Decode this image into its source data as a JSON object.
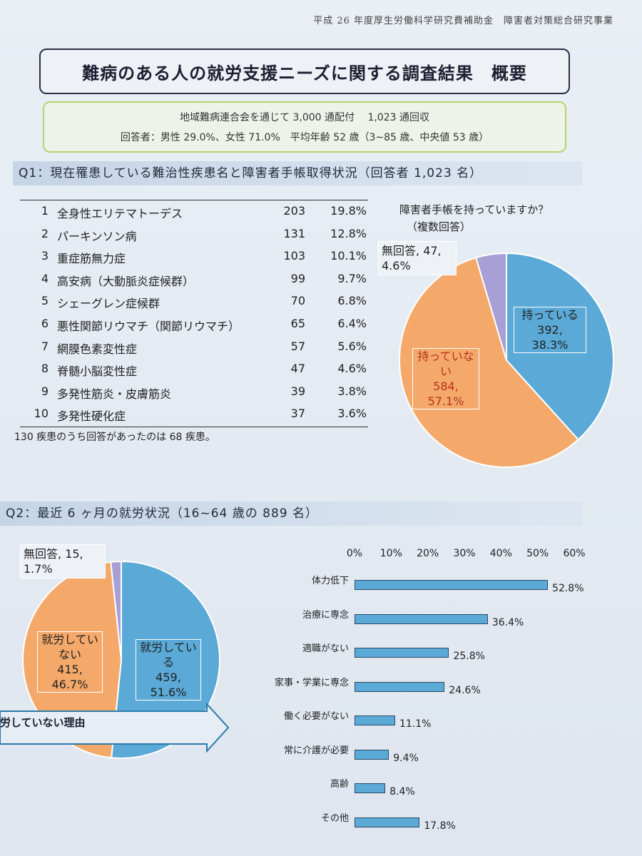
{
  "header": "平成 26 年度厚生労働科学研究費補助金　障害者対策総合研究事業",
  "title": "難病のある人の就労支援ニーズに関する調査結果　概要",
  "summary": {
    "line1": "地域難病連合会を通じて 3,000 通配付　 1,023 通回収",
    "line2": "回答者：男性 29.0%、女性 71.0%　平均年齢 52 歳（3~85 歳、中央値 53 歳）"
  },
  "q1": {
    "heading": "Q1：現在罹患している難治性疾患名と障害者手帳取得状況（回答者 1,023 名）",
    "rows": [
      {
        "rank": "1",
        "name": "全身性エリテマトーデス",
        "count": "203",
        "pct": "19.8%"
      },
      {
        "rank": "2",
        "name": "パーキンソン病",
        "count": "131",
        "pct": "12.8%"
      },
      {
        "rank": "3",
        "name": "重症筋無力症",
        "count": "103",
        "pct": "10.1%"
      },
      {
        "rank": "4",
        "name": "高安病（大動脈炎症候群）",
        "count": "99",
        "pct": "9.7%"
      },
      {
        "rank": "5",
        "name": "シェーグレン症候群",
        "count": "70",
        "pct": "6.8%"
      },
      {
        "rank": "6",
        "name": "悪性関節リウマチ（関節リウマチ）",
        "count": "65",
        "pct": "6.4%"
      },
      {
        "rank": "7",
        "name": "網膜色素変性症",
        "count": "57",
        "pct": "5.6%"
      },
      {
        "rank": "8",
        "name": "脊髄小脳変性症",
        "count": "47",
        "pct": "4.6%"
      },
      {
        "rank": "9",
        "name": "多発性筋炎・皮膚筋炎",
        "count": "39",
        "pct": "3.8%"
      },
      {
        "rank": "10",
        "name": "多発性硬化症",
        "count": "37",
        "pct": "3.6%"
      }
    ],
    "note": "130 疾患のうち回答があったのは 68 疾患。",
    "pie_title": "障害者手帳を持っていますか？",
    "pie_subtitle": "（複数回答）"
  },
  "q2": {
    "heading": "Q2：最近 6 ヶ月の就労状況（16~64 歳の 889 名）",
    "reason_label": "労していない理由"
  },
  "chart_data": [
    {
      "type": "pie",
      "title": "障害者手帳を持っていますか？",
      "slices": [
        {
          "label": "持っている",
          "count": "392",
          "pct": "38.3%",
          "value": 38.3,
          "color": "#5aa9d6",
          "text_color": "#1a2a44"
        },
        {
          "label": "持っていない",
          "count": "584",
          "pct": "57.1%",
          "value": 57.1,
          "color": "#f4a96a",
          "text_color": "#b8321c"
        },
        {
          "label": "無回答",
          "count": "47",
          "pct": "4.6%",
          "value": 4.6,
          "color": "#a79fd6",
          "text_color": "#222222"
        }
      ]
    },
    {
      "type": "pie",
      "title": "最近 6 ヶ月の就労状況",
      "slices": [
        {
          "label": "就労している",
          "count": "459",
          "pct": "51.6%",
          "value": 51.6,
          "color": "#5aa9d6",
          "text_color": "#1a2a44"
        },
        {
          "label": "就労していない",
          "count": "415",
          "pct": "46.7%",
          "value": 46.7,
          "color": "#f4a96a",
          "text_color": "#222222"
        },
        {
          "label": "無回答",
          "count": "15",
          "pct": "1.7%",
          "value": 1.7,
          "color": "#a79fd6",
          "text_color": "#222222"
        }
      ]
    },
    {
      "type": "bar",
      "orientation": "horizontal",
      "title": "労していない理由",
      "categories": [
        "体力低下",
        "治療に専念",
        "適職がない",
        "家事・学業に専念",
        "働く必要がない",
        "常に介護が必要",
        "高齢",
        "その他"
      ],
      "values": [
        52.8,
        36.4,
        25.8,
        24.6,
        11.1,
        9.4,
        8.4,
        17.8
      ],
      "value_labels": [
        "52.8%",
        "36.4%",
        "25.8%",
        "24.6%",
        "11.1%",
        "9.4%",
        "8.4%",
        "17.8%"
      ],
      "ticks": [
        "0%",
        "10%",
        "20%",
        "30%",
        "40%",
        "50%",
        "60%"
      ],
      "xlim": [
        0,
        60
      ]
    }
  ]
}
